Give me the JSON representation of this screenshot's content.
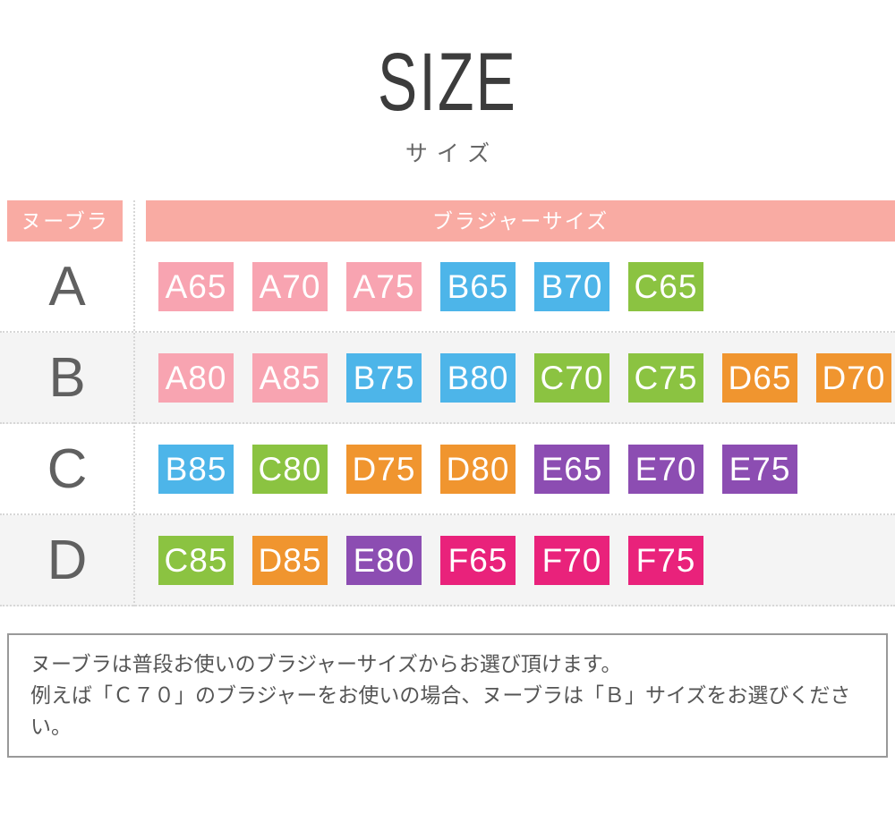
{
  "page": {
    "title": "SIZE",
    "subtitle": "サイズ"
  },
  "table": {
    "header": {
      "left": "ヌーブラ",
      "right": "ブラジャーサイズ"
    },
    "rows": [
      {
        "label": "A",
        "shaded": false,
        "chips": [
          {
            "text": "A65",
            "color": "pink"
          },
          {
            "text": "A70",
            "color": "pink"
          },
          {
            "text": "A75",
            "color": "pink"
          },
          {
            "text": "B65",
            "color": "blue"
          },
          {
            "text": "B70",
            "color": "blue"
          },
          {
            "text": "C65",
            "color": "green"
          }
        ]
      },
      {
        "label": "B",
        "shaded": true,
        "chips": [
          {
            "text": "A80",
            "color": "pink"
          },
          {
            "text": "A85",
            "color": "pink"
          },
          {
            "text": "B75",
            "color": "blue"
          },
          {
            "text": "B80",
            "color": "blue"
          },
          {
            "text": "C70",
            "color": "green"
          },
          {
            "text": "C75",
            "color": "green"
          },
          {
            "text": "D65",
            "color": "orange"
          },
          {
            "text": "D70",
            "color": "orange"
          }
        ]
      },
      {
        "label": "C",
        "shaded": false,
        "chips": [
          {
            "text": "B85",
            "color": "blue"
          },
          {
            "text": "C80",
            "color": "green"
          },
          {
            "text": "D75",
            "color": "orange"
          },
          {
            "text": "D80",
            "color": "orange"
          },
          {
            "text": "E65",
            "color": "purple"
          },
          {
            "text": "E70",
            "color": "purple"
          },
          {
            "text": "E75",
            "color": "purple"
          }
        ]
      },
      {
        "label": "D",
        "shaded": true,
        "chips": [
          {
            "text": "C85",
            "color": "green"
          },
          {
            "text": "D85",
            "color": "orange"
          },
          {
            "text": "E80",
            "color": "purple"
          },
          {
            "text": "F65",
            "color": "magenta"
          },
          {
            "text": "F70",
            "color": "magenta"
          },
          {
            "text": "F75",
            "color": "magenta"
          }
        ]
      }
    ]
  },
  "note": {
    "lines": [
      "ヌーブラは普段お使いのブラジャーサイズからお選び頂けます。",
      "例えば「Ｃ７０」のブラジャーをお使いの場合、ヌーブラは「Ｂ」サイズをお選びください。"
    ]
  },
  "colors": {
    "header_bg": "#F9ABA3",
    "pink": "#F8A4B1",
    "blue": "#4DB5E9",
    "green": "#8BC341",
    "orange": "#F0952F",
    "purple": "#8C4DB2",
    "magenta": "#E9227B",
    "row_shade": "#F4F4F4",
    "title_text": "#3C3C3C",
    "label_text": "#606060",
    "note_text": "#555555",
    "note_border": "#999999"
  },
  "chart_data": {
    "type": "table",
    "title": "SIZE",
    "subtitle": "サイズ",
    "columns": [
      "ヌーブラ",
      "ブラジャーサイズ"
    ],
    "rows": [
      {
        "nubra_size": "A",
        "bra_sizes": [
          "A65",
          "A70",
          "A75",
          "B65",
          "B70",
          "C65"
        ]
      },
      {
        "nubra_size": "B",
        "bra_sizes": [
          "A80",
          "A85",
          "B75",
          "B80",
          "C70",
          "C75",
          "D65",
          "D70"
        ]
      },
      {
        "nubra_size": "C",
        "bra_sizes": [
          "B85",
          "C80",
          "D75",
          "D80",
          "E65",
          "E70",
          "E75"
        ]
      },
      {
        "nubra_size": "D",
        "bra_sizes": [
          "C85",
          "D85",
          "E80",
          "F65",
          "F70",
          "F75"
        ]
      }
    ],
    "note": "ヌーブラは普段お使いのブラジャーサイズからお選び頂けます。例えば「Ｃ７０」のブラジャーをお使いの場合、ヌーブラは「Ｂ」サイズをお選びください。"
  }
}
